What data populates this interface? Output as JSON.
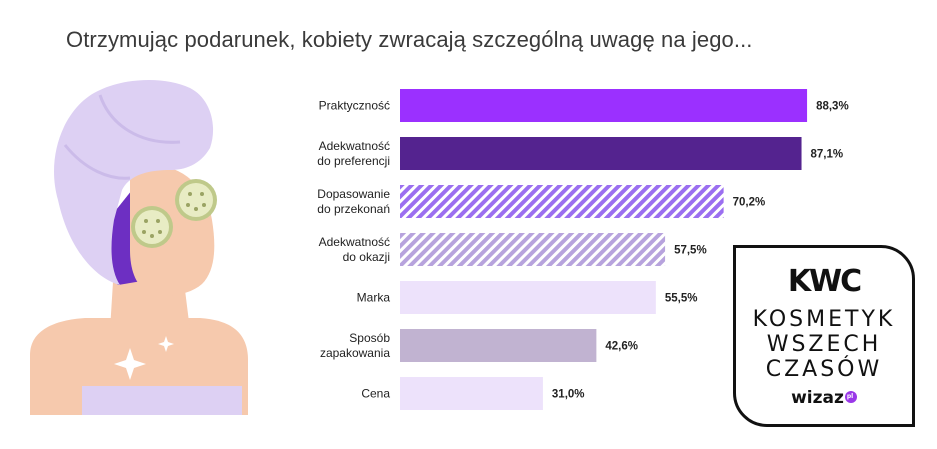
{
  "title": "Otrzymując podarunek, kobiety zwracają szczególną uwagę na jego...",
  "chart_data": {
    "type": "bar",
    "orientation": "horizontal",
    "categories": [
      [
        "Praktyczność"
      ],
      [
        "Adekwatność",
        "do preferencji"
      ],
      [
        "Dopasowanie",
        "do przekonań"
      ],
      [
        "Adekwatność",
        "do okazji"
      ],
      [
        "Marka"
      ],
      [
        "Sposób",
        "zapakowania"
      ],
      [
        "Cena"
      ]
    ],
    "values": [
      88.3,
      87.1,
      70.2,
      57.5,
      55.5,
      42.6,
      31.0
    ],
    "value_labels": [
      "88,3%",
      "87,1%",
      "70,2%",
      "57,5%",
      "55,5%",
      "42,6%",
      "31,0%"
    ],
    "bar_colors": [
      "#9b30ff",
      "#54238f",
      "#9b6ff0",
      "#b7a3dd",
      "#ede2fb",
      "#c1b3d1",
      "#ede2fb"
    ],
    "bar_patterns": [
      "solid",
      "solid",
      "hatched",
      "hatched",
      "solid",
      "solid",
      "solid"
    ],
    "xlim": [
      0,
      100
    ],
    "grid": false,
    "legend": "none"
  },
  "badge": {
    "logo": "KWC",
    "line1": "KOSMETYK",
    "line2": "WSZECH",
    "line3": "CZASÓW",
    "brand": "wizaz",
    "brand_suffix": "pl"
  },
  "colors": {
    "towel": "#ddd0f3",
    "skin": "#f6c9ad",
    "hair": "#6d2fc2",
    "cucumber": "#e8ecc4"
  }
}
